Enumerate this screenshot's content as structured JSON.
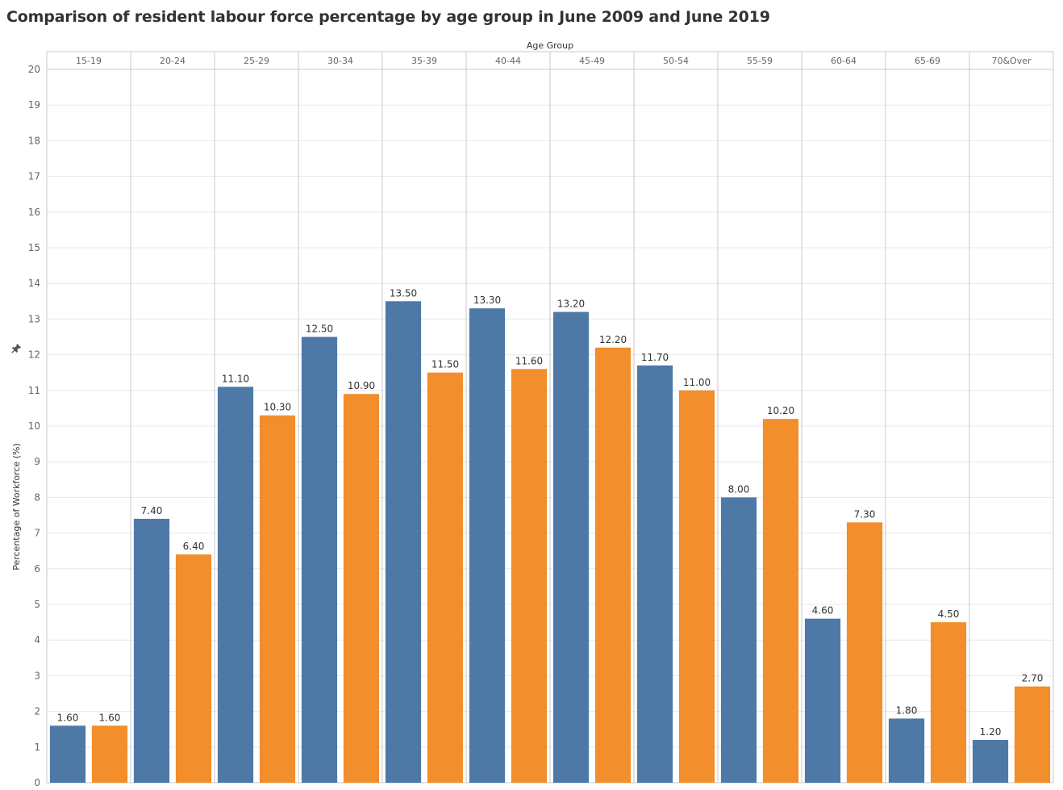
{
  "title": "Comparison of resident labour force percentage by age group in June 2009 and June 2019",
  "colors": {
    "series_2009": "#4e79a7",
    "series_2019": "#f28e2b",
    "grid": "#e8e8e8",
    "divider": "#c8c8c8",
    "text": "#333333",
    "axis_text": "#666666"
  },
  "icons": {
    "pin": "pin-icon"
  },
  "chart_data": {
    "type": "bar",
    "title": "Comparison of resident labour force percentage by age group in June 2009 and June 2019",
    "xlabel": "Age Group",
    "ylabel": "Percentage of Workforce (%)",
    "ylim": [
      0,
      20
    ],
    "yticks": [
      0,
      1,
      2,
      3,
      4,
      5,
      6,
      7,
      8,
      9,
      10,
      11,
      12,
      13,
      14,
      15,
      16,
      17,
      18,
      19,
      20
    ],
    "grid": true,
    "legend": "none",
    "categories": [
      "15-19",
      "20-24",
      "25-29",
      "30-34",
      "35-39",
      "40-44",
      "45-49",
      "50-54",
      "55-59",
      "60-64",
      "65-69",
      "70&Over"
    ],
    "series": [
      {
        "values": [
          1.6,
          7.4,
          11.1,
          12.5,
          13.5,
          13.3,
          13.2,
          11.7,
          8.0,
          4.6,
          1.8,
          1.2
        ],
        "color": "#4e79a7"
      },
      {
        "values": [
          1.6,
          6.4,
          10.3,
          10.9,
          11.5,
          11.6,
          12.2,
          11.0,
          10.2,
          7.3,
          4.5,
          2.7
        ],
        "color": "#f28e2b"
      }
    ],
    "data_labels": [
      [
        "1.60",
        "7.40",
        "11.10",
        "12.50",
        "13.50",
        "13.30",
        "13.20",
        "11.70",
        "8.00",
        "4.60",
        "1.80",
        "1.20"
      ],
      [
        "1.60",
        "6.40",
        "10.30",
        "10.90",
        "11.50",
        "11.60",
        "12.20",
        "11.00",
        "10.20",
        "7.30",
        "4.50",
        "2.70"
      ]
    ]
  }
}
